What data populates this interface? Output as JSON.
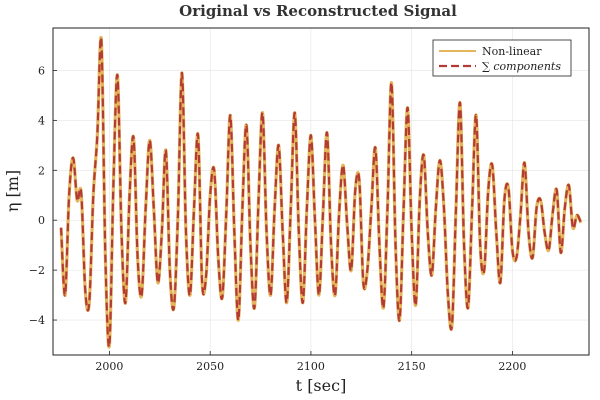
{
  "chart_data": {
    "type": "line",
    "title": "Original vs Reconstructed Signal",
    "xlabel": "t [sec]",
    "ylabel": "η [m]",
    "xlim": [
      1972,
      2238
    ],
    "ylim": [
      -5.4,
      7.7
    ],
    "xticks": [
      2000,
      2050,
      2100,
      2150,
      2200
    ],
    "yticks": [
      -4,
      -2,
      0,
      2,
      4,
      6
    ],
    "grid": true,
    "legend_position": "top-right",
    "series": [
      {
        "name": "Non-linear",
        "color": "#e4b55a",
        "style": "solid",
        "x": [
          1976,
          1978,
          1980,
          1982,
          1984,
          1986,
          1988,
          1990,
          1992,
          1994,
          1996,
          1998,
          2000,
          2002,
          2004,
          2006,
          2008,
          2010,
          2012,
          2014,
          2016,
          2018,
          2020,
          2022,
          2024,
          2026,
          2028,
          2030,
          2032,
          2034,
          2036,
          2038,
          2040,
          2042,
          2044,
          2046,
          2048,
          2050,
          2052,
          2054,
          2056,
          2058,
          2060,
          2062,
          2064,
          2066,
          2068,
          2070,
          2072,
          2074,
          2076,
          2078,
          2080,
          2082,
          2084,
          2086,
          2088,
          2090,
          2092,
          2094,
          2096,
          2098,
          2100,
          2102,
          2104,
          2106,
          2108,
          2110,
          2112,
          2114,
          2116,
          2118,
          2120,
          2122,
          2124,
          2126,
          2128,
          2130,
          2132,
          2134,
          2136,
          2138,
          2140,
          2142,
          2144,
          2146,
          2148,
          2150,
          2152,
          2154,
          2156,
          2158,
          2160,
          2162,
          2164,
          2166,
          2168,
          2170,
          2172,
          2174,
          2176,
          2178,
          2180,
          2182,
          2184,
          2186,
          2188,
          2190,
          2192,
          2194,
          2196,
          2198,
          2200,
          2202,
          2204,
          2206,
          2208,
          2210,
          2212,
          2214,
          2216,
          2218,
          2220,
          2222,
          2224,
          2226,
          2228,
          2230,
          2232,
          2234
        ],
        "values": [
          -0.3,
          -3.0,
          1.0,
          2.5,
          0.8,
          1.1,
          -2.8,
          -3.3,
          1.0,
          3.4,
          7.2,
          -1.5,
          -5.0,
          1.5,
          5.8,
          -0.5,
          -3.3,
          1.0,
          3.3,
          -1.5,
          -3.0,
          0.5,
          3.2,
          0.5,
          -2.5,
          -0.5,
          2.8,
          -2.0,
          -3.5,
          0.2,
          5.9,
          -0.5,
          -3.0,
          0.5,
          3.4,
          -2.5,
          -2.2,
          1.0,
          2.0,
          -1.5,
          -3.1,
          0.3,
          4.2,
          -0.5,
          -4.0,
          0.5,
          3.8,
          -1.0,
          -3.5,
          0.8,
          4.3,
          -0.5,
          -3.0,
          0.5,
          3.0,
          -0.5,
          -3.3,
          0.5,
          4.3,
          -0.5,
          -3.3,
          0.5,
          3.4,
          0.0,
          -3.0,
          0.3,
          3.5,
          -1.0,
          -3.0,
          0.3,
          2.2,
          -0.2,
          -2.0,
          1.2,
          1.6,
          -2.5,
          -2.0,
          0.5,
          2.9,
          -1.0,
          -3.5,
          0.5,
          5.5,
          -1.0,
          -4.0,
          0.5,
          4.5,
          -0.5,
          -3.4,
          0.8,
          2.6,
          -0.5,
          -2.2,
          0.5,
          2.4,
          0.5,
          -3.0,
          -4.2,
          0.5,
          4.7,
          -1.0,
          -3.5,
          0.5,
          4.2,
          -1.0,
          -2.0,
          1.2,
          2.2,
          -0.5,
          -2.5,
          0.8,
          1.3,
          -1.2,
          -1.5,
          0.2,
          2.3,
          -0.5,
          -1.5,
          0.5,
          0.8,
          -0.5,
          -1.2,
          0.3,
          1.2,
          -1.3,
          0.5,
          1.4,
          -0.3,
          0.2,
          -0.1
        ]
      },
      {
        "name": "∑ components",
        "color": "#b33b33",
        "style": "dashed",
        "x": [
          1976,
          1978,
          1980,
          1982,
          1984,
          1986,
          1988,
          1990,
          1992,
          1994,
          1996,
          1998,
          2000,
          2002,
          2004,
          2006,
          2008,
          2010,
          2012,
          2014,
          2016,
          2018,
          2020,
          2022,
          2024,
          2026,
          2028,
          2030,
          2032,
          2034,
          2036,
          2038,
          2040,
          2042,
          2044,
          2046,
          2048,
          2050,
          2052,
          2054,
          2056,
          2058,
          2060,
          2062,
          2064,
          2066,
          2068,
          2070,
          2072,
          2074,
          2076,
          2078,
          2080,
          2082,
          2084,
          2086,
          2088,
          2090,
          2092,
          2094,
          2096,
          2098,
          2100,
          2102,
          2104,
          2106,
          2108,
          2110,
          2112,
          2114,
          2116,
          2118,
          2120,
          2122,
          2124,
          2126,
          2128,
          2130,
          2132,
          2134,
          2136,
          2138,
          2140,
          2142,
          2144,
          2146,
          2148,
          2150,
          2152,
          2154,
          2156,
          2158,
          2160,
          2162,
          2164,
          2166,
          2168,
          2170,
          2172,
          2174,
          2176,
          2178,
          2180,
          2182,
          2184,
          2186,
          2188,
          2190,
          2192,
          2194,
          2196,
          2198,
          2200,
          2202,
          2204,
          2206,
          2208,
          2210,
          2212,
          2214,
          2216,
          2218,
          2220,
          2222,
          2224,
          2226,
          2228,
          2230,
          2232,
          2234
        ],
        "values": [
          -0.3,
          -3.0,
          1.0,
          2.5,
          0.8,
          1.1,
          -2.8,
          -3.3,
          1.0,
          3.4,
          7.2,
          -1.5,
          -5.0,
          1.5,
          5.8,
          -0.5,
          -3.3,
          1.0,
          3.3,
          -1.5,
          -3.0,
          0.5,
          3.2,
          0.5,
          -2.5,
          -0.5,
          2.8,
          -2.0,
          -3.5,
          0.2,
          5.9,
          -0.5,
          -3.0,
          0.5,
          3.4,
          -2.5,
          -2.2,
          1.0,
          2.0,
          -1.5,
          -3.1,
          0.3,
          4.2,
          -0.5,
          -4.0,
          0.5,
          3.8,
          -1.0,
          -3.5,
          0.8,
          4.3,
          -0.5,
          -3.0,
          0.5,
          3.0,
          -0.5,
          -3.3,
          0.5,
          4.3,
          -0.5,
          -3.3,
          0.5,
          3.4,
          0.0,
          -3.0,
          0.3,
          3.5,
          -1.0,
          -3.0,
          0.3,
          2.2,
          -0.2,
          -2.0,
          1.2,
          1.6,
          -2.5,
          -2.0,
          0.5,
          2.9,
          -1.0,
          -3.5,
          0.5,
          5.5,
          -1.0,
          -4.0,
          0.5,
          4.5,
          -0.5,
          -3.4,
          0.8,
          2.6,
          -0.5,
          -2.2,
          0.5,
          2.4,
          0.5,
          -3.0,
          -4.2,
          0.5,
          4.7,
          -1.0,
          -3.5,
          0.5,
          4.2,
          -1.0,
          -2.0,
          1.2,
          2.2,
          -0.5,
          -2.5,
          0.8,
          1.3,
          -1.2,
          -1.5,
          0.2,
          2.3,
          -0.5,
          -1.5,
          0.5,
          0.8,
          -0.5,
          -1.2,
          0.3,
          1.2,
          -1.3,
          0.5,
          1.4,
          -0.3,
          0.2,
          -0.1
        ]
      }
    ]
  }
}
